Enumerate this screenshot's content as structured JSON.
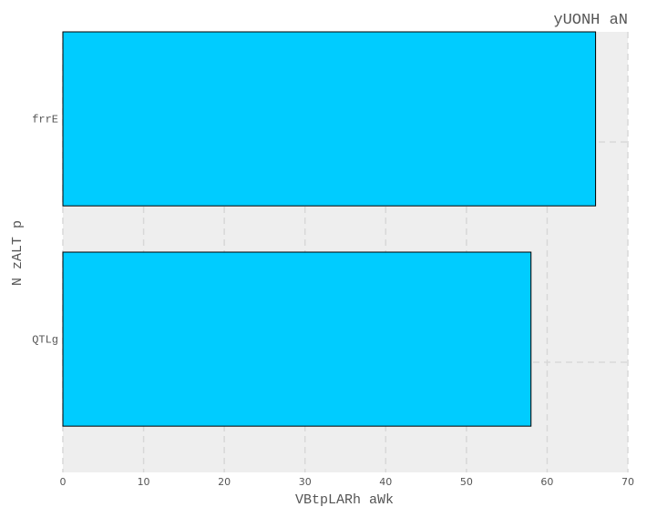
{
  "chart_data": {
    "type": "bar",
    "orientation": "horizontal",
    "title": "yUONH aN",
    "xlabel": "VBtpLARh aWk",
    "ylabel": "N  zALT p",
    "categories": [
      "frrE",
      "QTLg"
    ],
    "values": [
      66,
      58
    ],
    "xlim": [
      0,
      70
    ],
    "xticks": [
      0,
      10,
      20,
      30,
      40,
      50,
      60,
      70
    ],
    "grid": true,
    "bar_color": "#00ccff",
    "background": "#eeeeee"
  }
}
